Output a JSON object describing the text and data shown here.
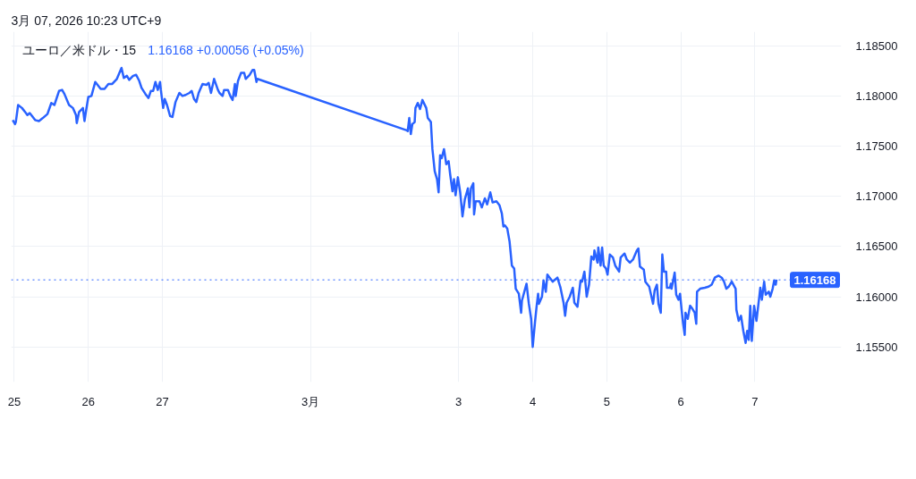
{
  "chart_data": {
    "type": "line",
    "title": "ユーロ／米ドル・15",
    "subtitle": "1.16168 +0.00056 (+0.05%)",
    "annotations": [
      "3月 07, 2026 10:23 UTC+9"
    ],
    "color": "#2962ff",
    "x": [
      "2026-02-24T23:30",
      "2026-02-25T00:15",
      "2026-02-25T00:30",
      "2026-02-25T01:15",
      "2026-02-25T02:30",
      "2026-02-25T03:30",
      "2026-02-25T04:15",
      "2026-02-25T05:00",
      "2026-02-25T05:45",
      "2026-02-25T06:45",
      "2026-02-25T08:00",
      "2026-02-25T09:15",
      "2026-02-25T10:45",
      "2026-02-25T12:00",
      "2026-02-25T13:00",
      "2026-02-25T14:30",
      "2026-02-25T15:30",
      "2026-02-25T16:15",
      "2026-02-25T17:45",
      "2026-02-25T19:00",
      "2026-02-25T20:00",
      "2026-02-25T20:15",
      "2026-02-25T21:00",
      "2026-02-25T22:15",
      "2026-02-25T22:45",
      "2026-02-25T23:15",
      "2026-02-26T00:00",
      "2026-02-26T01:00",
      "2026-02-26T02:15",
      "2026-02-26T03:00",
      "2026-02-26T04:00",
      "2026-02-26T05:15",
      "2026-02-26T06:30",
      "2026-02-26T07:45",
      "2026-02-26T09:15",
      "2026-02-26T10:45",
      "2026-02-26T11:30",
      "2026-02-26T12:30",
      "2026-02-26T13:15",
      "2026-02-26T14:30",
      "2026-02-26T15:30",
      "2026-02-26T16:30",
      "2026-02-26T17:15",
      "2026-02-26T18:30",
      "2026-02-26T19:30",
      "2026-02-26T20:15",
      "2026-02-26T21:00",
      "2026-02-26T21:45",
      "2026-02-26T22:30",
      "2026-02-26T23:15",
      "2026-02-26T23:30",
      "2026-02-27T00:15",
      "2026-02-27T00:45",
      "2026-02-27T01:30",
      "2026-02-27T02:30",
      "2026-02-27T03:15",
      "2026-02-27T04:15",
      "2026-02-27T05:30",
      "2026-02-27T06:30",
      "2026-02-27T07:30",
      "2026-02-27T08:45",
      "2026-02-27T09:30",
      "2026-02-27T10:15",
      "2026-02-27T11:00",
      "2026-02-27T11:45",
      "2026-02-27T13:00",
      "2026-02-27T14:15",
      "2026-02-27T15:00",
      "2026-02-27T15:45",
      "2026-02-27T16:45",
      "2026-02-27T18:00",
      "2026-02-27T18:30",
      "2026-02-27T19:30",
      "2026-02-27T20:00",
      "2026-02-27T21:15",
      "2026-02-27T22:00",
      "2026-02-27T22:45",
      "2026-02-27T23:30",
      "2026-02-27T23:45",
      "2026-02-28T00:30",
      "2026-02-28T01:30",
      "2026-02-28T02:30",
      "2026-02-28T03:00",
      "2026-02-28T04:15",
      "2026-02-28T05:15",
      "2026-02-28T05:45",
      "2026-02-28T06:30",
      "2026-02-28T06:45",
      "2026-03-02T07:00",
      "2026-03-02T07:30",
      "2026-03-02T08:00",
      "2026-03-02T08:30",
      "2026-03-02T09:00",
      "2026-03-02T09:45",
      "2026-03-02T10:00",
      "2026-03-02T10:45",
      "2026-03-02T11:30",
      "2026-03-02T12:15",
      "2026-03-02T13:30",
      "2026-03-02T14:00",
      "2026-03-02T15:00",
      "2026-03-02T15:30",
      "2026-03-02T16:15",
      "2026-03-02T17:00",
      "2026-03-02T17:30",
      "2026-03-02T18:00",
      "2026-03-02T18:30",
      "2026-03-02T19:15",
      "2026-03-02T20:00",
      "2026-03-02T20:45",
      "2026-03-02T21:15",
      "2026-03-02T22:00",
      "2026-03-02T22:30",
      "2026-03-02T23:00",
      "2026-03-02T23:45",
      "2026-03-03T00:30",
      "2026-03-03T01:15",
      "2026-03-03T02:00",
      "2026-03-03T03:00",
      "2026-03-03T03:30",
      "2026-03-03T04:00",
      "2026-03-03T04:45",
      "2026-03-03T05:00",
      "2026-03-03T05:30",
      "2026-03-03T06:45",
      "2026-03-03T07:30",
      "2026-03-03T08:30",
      "2026-03-03T09:15",
      "2026-03-03T10:15",
      "2026-03-03T11:00",
      "2026-03-03T12:15",
      "2026-03-03T13:15",
      "2026-03-03T14:00",
      "2026-03-03T14:30",
      "2026-03-03T15:00",
      "2026-03-03T15:45",
      "2026-03-03T16:30",
      "2026-03-03T17:15",
      "2026-03-03T18:00",
      "2026-03-03T18:30",
      "2026-03-03T19:30",
      "2026-03-03T20:15",
      "2026-03-03T20:30",
      "2026-03-03T22:00",
      "2026-03-03T22:45",
      "2026-03-03T23:30",
      "2026-03-04T00:00",
      "2026-03-04T00:45",
      "2026-03-04T01:15",
      "2026-03-04T01:45",
      "2026-03-04T02:00",
      "2026-03-04T03:00",
      "2026-03-04T03:30",
      "2026-03-04T04:15",
      "2026-03-04T04:45",
      "2026-03-04T05:30",
      "2026-03-04T06:30",
      "2026-03-04T08:00",
      "2026-03-04T09:00",
      "2026-03-04T10:00",
      "2026-03-04T10:30",
      "2026-03-04T11:00",
      "2026-03-04T12:00",
      "2026-03-04T13:00",
      "2026-03-04T13:30",
      "2026-03-04T14:30",
      "2026-03-04T15:30",
      "2026-03-04T16:00",
      "2026-03-04T16:45",
      "2026-03-04T17:30",
      "2026-03-04T18:15",
      "2026-03-04T19:00",
      "2026-03-04T19:45",
      "2026-03-04T20:00",
      "2026-03-04T21:00",
      "2026-03-04T21:15",
      "2026-03-04T22:00",
      "2026-03-04T22:30",
      "2026-03-04T23:00",
      "2026-03-04T23:45",
      "2026-03-05T00:15",
      "2026-03-05T01:00",
      "2026-03-05T02:00",
      "2026-03-05T02:45",
      "2026-03-05T04:00",
      "2026-03-05T04:30",
      "2026-03-05T05:45",
      "2026-03-05T06:30",
      "2026-03-05T07:30",
      "2026-03-05T08:30",
      "2026-03-05T09:45",
      "2026-03-05T10:15",
      "2026-03-05T10:45",
      "2026-03-05T12:00",
      "2026-03-05T12:30",
      "2026-03-05T13:45",
      "2026-03-05T15:00",
      "2026-03-05T15:30",
      "2026-03-05T16:15",
      "2026-03-05T16:45",
      "2026-03-05T17:30",
      "2026-03-05T18:00",
      "2026-03-05T18:30",
      "2026-03-05T19:15",
      "2026-03-05T19:30",
      "2026-03-05T20:30",
      "2026-03-05T20:45",
      "2026-03-05T21:00",
      "2026-03-05T22:00",
      "2026-03-05T22:30",
      "2026-03-05T23:15",
      "2026-03-05T23:45",
      "2026-03-06T00:15",
      "2026-03-06T00:45",
      "2026-03-06T01:15",
      "2026-03-06T01:30",
      "2026-03-06T02:15",
      "2026-03-06T03:00",
      "2026-03-06T03:45",
      "2026-03-06T04:30",
      "2026-03-06T05:00",
      "2026-03-06T05:15",
      "2026-03-06T06:15",
      "2026-03-06T07:45",
      "2026-03-06T09:00",
      "2026-03-06T10:00",
      "2026-03-06T11:00",
      "2026-03-06T12:15",
      "2026-03-06T13:15",
      "2026-03-06T14:00",
      "2026-03-06T14:45",
      "2026-03-06T15:30",
      "2026-03-06T16:30",
      "2026-03-06T17:45",
      "2026-03-06T18:00",
      "2026-03-06T18:45",
      "2026-03-06T19:30",
      "2026-03-06T20:15",
      "2026-03-06T21:00",
      "2026-03-06T21:30",
      "2026-03-06T22:00",
      "2026-03-06T22:30",
      "2026-03-06T23:00",
      "2026-03-06T23:45",
      "2026-03-07T00:30",
      "2026-03-07T01:30",
      "2026-03-07T01:45",
      "2026-03-07T02:15",
      "2026-03-07T03:00",
      "2026-03-07T03:30",
      "2026-03-07T04:30",
      "2026-03-07T05:00",
      "2026-03-07T05:45",
      "2026-03-07T06:15",
      "2026-03-07T06:45",
      "2026-03-07T07:00"
    ],
    "values": [
      1.1776,
      1.1772,
      1.1774,
      1.1791,
      1.1788,
      1.1784,
      1.1781,
      1.1783,
      1.178,
      1.1776,
      1.1775,
      1.1778,
      1.1782,
      1.1793,
      1.1791,
      1.1805,
      1.1806,
      1.1802,
      1.1791,
      1.1788,
      1.1781,
      1.1773,
      1.1784,
      1.1788,
      1.1775,
      1.1785,
      1.1799,
      1.18,
      1.1814,
      1.1811,
      1.1807,
      1.1807,
      1.1812,
      1.1812,
      1.1817,
      1.1828,
      1.1818,
      1.182,
      1.1816,
      1.182,
      1.1821,
      1.1815,
      1.1808,
      1.1802,
      1.1798,
      1.1805,
      1.1805,
      1.1814,
      1.1806,
      1.1814,
      1.1806,
      1.1788,
      1.1797,
      1.1791,
      1.178,
      1.1779,
      1.1794,
      1.1803,
      1.18,
      1.1801,
      1.1803,
      1.1805,
      1.1797,
      1.1794,
      1.1803,
      1.1812,
      1.1811,
      1.1813,
      1.1803,
      1.1817,
      1.1806,
      1.1803,
      1.18,
      1.1806,
      1.1806,
      1.18,
      1.1796,
      1.1812,
      1.18,
      1.1815,
      1.1823,
      1.1823,
      1.1817,
      1.1821,
      1.1826,
      1.1826,
      1.1814,
      1.1817,
      1.1766,
      1.1765,
      1.1778,
      1.1762,
      1.1772,
      1.1774,
      1.1788,
      1.1793,
      1.1787,
      1.1796,
      1.1788,
      1.1778,
      1.1774,
      1.1747,
      1.1725,
      1.1717,
      1.1704,
      1.1741,
      1.1738,
      1.1747,
      1.1732,
      1.1735,
      1.1722,
      1.1705,
      1.1717,
      1.1701,
      1.1719,
      1.1704,
      1.168,
      1.1697,
      1.1708,
      1.1689,
      1.1708,
      1.1713,
      1.1682,
      1.1695,
      1.1695,
      1.1689,
      1.1698,
      1.1692,
      1.1704,
      1.1694,
      1.1695,
      1.1691,
      1.1683,
      1.167,
      1.1671,
      1.1668,
      1.1655,
      1.1631,
      1.1628,
      1.1608,
      1.1603,
      1.1584,
      1.1596,
      1.1613,
      1.1593,
      1.1578,
      1.155,
      1.1575,
      1.159,
      1.1603,
      1.1593,
      1.16,
      1.1616,
      1.1605,
      1.1622,
      1.1619,
      1.1615,
      1.1619,
      1.1609,
      1.1594,
      1.1581,
      1.1594,
      1.16,
      1.1609,
      1.1594,
      1.159,
      1.1616,
      1.1615,
      1.1625,
      1.16,
      1.1612,
      1.164,
      1.1637,
      1.1646,
      1.1634,
      1.1649,
      1.1631,
      1.1649,
      1.1631,
      1.1628,
      1.1622,
      1.1642,
      1.1639,
      1.1631,
      1.1625,
      1.1639,
      1.1643,
      1.1637,
      1.1634,
      1.1637,
      1.1646,
      1.1648,
      1.163,
      1.1627,
      1.1615,
      1.161,
      1.1593,
      1.1606,
      1.1612,
      1.1593,
      1.1584,
      1.1642,
      1.1625,
      1.1625,
      1.1609,
      1.1609,
      1.1613,
      1.1608,
      1.1624,
      1.1602,
      1.1597,
      1.1603,
      1.1587,
      1.1573,
      1.1562,
      1.1584,
      1.1578,
      1.1591,
      1.1588,
      1.1584,
      1.1573,
      1.1605,
      1.1608,
      1.1609,
      1.161,
      1.1612,
      1.1619,
      1.1621,
      1.1619,
      1.1615,
      1.1608,
      1.161,
      1.1615,
      1.1608,
      1.1587,
      1.1576,
      1.1581,
      1.1566,
      1.1554,
      1.1566,
      1.1557,
      1.1591,
      1.1556,
      1.1591,
      1.1576,
      1.1602,
      1.1609,
      1.1597,
      1.1615,
      1.1602,
      1.1605,
      1.16,
      1.1608,
      1.1616,
      1.1612,
      1.1617
    ],
    "xlim": [
      "2026-02-24T23:00",
      "2026-03-08T04:00"
    ],
    "ylim": [
      1.1515,
      1.1864
    ],
    "xticks": [
      {
        "value": "2026-02-25",
        "label": "25"
      },
      {
        "value": "2026-02-26",
        "label": "26"
      },
      {
        "value": "2026-02-27",
        "label": "27"
      },
      {
        "value": "2026-03-01",
        "label": "3月"
      },
      {
        "value": "2026-03-03",
        "label": "3"
      },
      {
        "value": "2026-03-04",
        "label": "4"
      },
      {
        "value": "2026-03-05",
        "label": "5"
      },
      {
        "value": "2026-03-06",
        "label": "6"
      },
      {
        "value": "2026-03-07",
        "label": "7"
      }
    ],
    "yticks": [
      {
        "value": 1.155,
        "label": "1.15500"
      },
      {
        "value": 1.16,
        "label": "1.16000"
      },
      {
        "value": 1.165,
        "label": "1.16500"
      },
      {
        "value": 1.17,
        "label": "1.17000"
      },
      {
        "value": 1.175,
        "label": "1.17500"
      },
      {
        "value": 1.18,
        "label": "1.18000"
      },
      {
        "value": 1.185,
        "label": "1.18500"
      }
    ],
    "grid": true,
    "ref_lines": [
      {
        "axis": "y",
        "value": 1.16168,
        "label": "1.16168",
        "color": "#2962ff",
        "line_style": "dotted"
      }
    ]
  }
}
